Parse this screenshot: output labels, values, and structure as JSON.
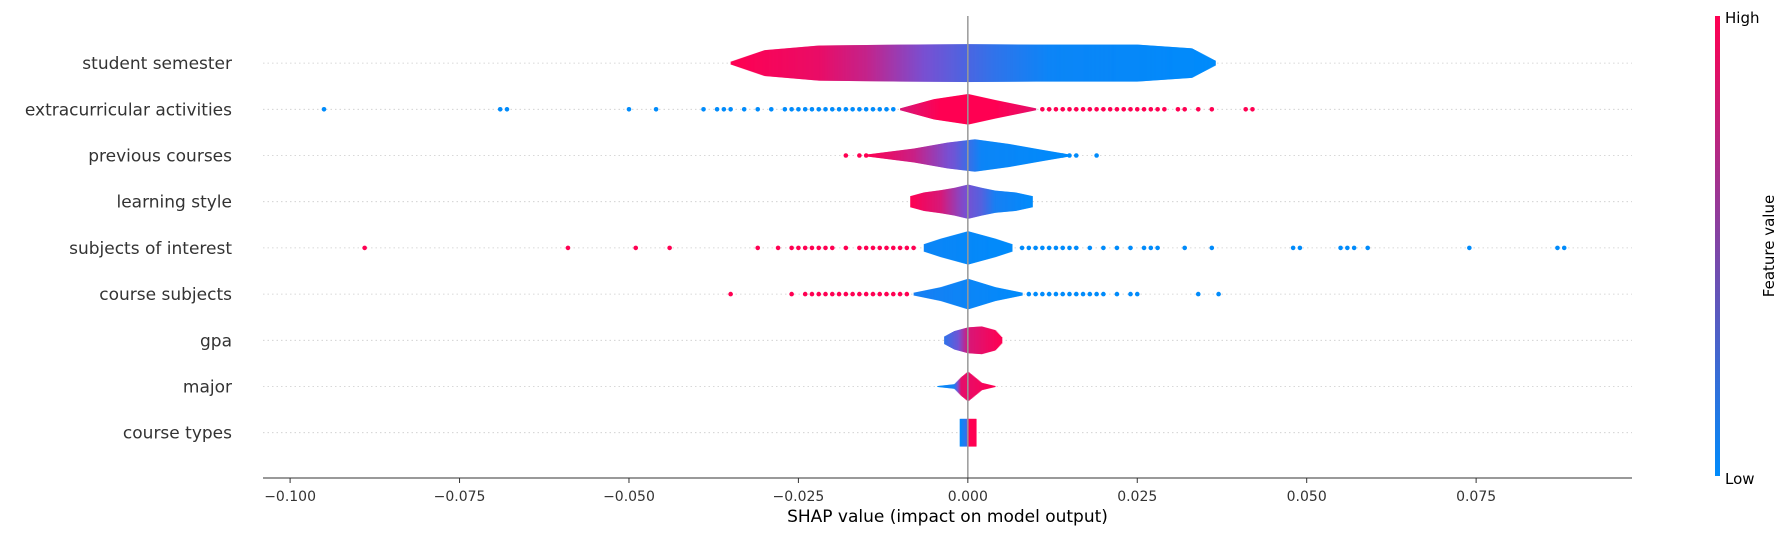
{
  "chart_data": {
    "type": "scatter",
    "subtype": "shap-summary-violin",
    "xlabel": "SHAP value (impact on model output)",
    "xlim": [
      -0.104,
      0.098
    ],
    "x_ticks": [
      -0.1,
      -0.075,
      -0.05,
      -0.025,
      0.0,
      0.025,
      0.05,
      0.075
    ],
    "x_tick_labels": [
      "−0.100",
      "−0.075",
      "−0.050",
      "−0.025",
      "0.000",
      "0.025",
      "0.050",
      "0.075"
    ],
    "colorbar": {
      "label": "Feature value",
      "high_label": "High",
      "low_label": "Low",
      "high_color": "#ff0052",
      "low_color": "#008bfb"
    },
    "features": [
      {
        "name": "student semester",
        "body_range": [
          -0.035,
          0.0365
        ],
        "max_half_width": 0.42,
        "width_profile": [
          [
            -0.035,
            0.03
          ],
          [
            -0.03,
            0.28
          ],
          [
            -0.022,
            0.38
          ],
          [
            -0.01,
            0.4
          ],
          [
            0.0,
            0.41
          ],
          [
            0.01,
            0.4
          ],
          [
            0.025,
            0.4
          ],
          [
            0.033,
            0.32
          ],
          [
            0.0365,
            0.05
          ]
        ],
        "color_profile": [
          [
            -0.035,
            1.0
          ],
          [
            -0.022,
            0.92
          ],
          [
            -0.015,
            0.78
          ],
          [
            -0.008,
            0.55
          ],
          [
            -0.003,
            0.4
          ],
          [
            0.004,
            0.2
          ],
          [
            0.012,
            0.05
          ],
          [
            0.0365,
            0.0
          ]
        ],
        "points": []
      },
      {
        "name": "extracurricular activities",
        "body_range": [
          -0.01,
          0.01
        ],
        "max_half_width": 0.33,
        "width_profile": [
          [
            -0.01,
            0.02
          ],
          [
            -0.005,
            0.22
          ],
          [
            0.0,
            0.33
          ],
          [
            0.004,
            0.2
          ],
          [
            0.01,
            0.02
          ]
        ],
        "color_profile": [
          [
            -0.01,
            0.85
          ],
          [
            -0.004,
            1.0
          ],
          [
            0.004,
            1.0
          ],
          [
            0.01,
            0.9
          ]
        ],
        "points": [
          [
            -0.095,
            0
          ],
          [
            -0.069,
            0
          ],
          [
            -0.068,
            0
          ],
          [
            -0.05,
            0
          ],
          [
            -0.046,
            0
          ],
          [
            -0.039,
            0
          ],
          [
            -0.037,
            0
          ],
          [
            -0.036,
            0
          ],
          [
            -0.035,
            0
          ],
          [
            -0.033,
            0
          ],
          [
            -0.031,
            0
          ],
          [
            -0.029,
            0
          ],
          [
            -0.027,
            0
          ],
          [
            -0.026,
            0
          ],
          [
            -0.025,
            0
          ],
          [
            -0.024,
            0
          ],
          [
            -0.023,
            0
          ],
          [
            -0.022,
            0
          ],
          [
            -0.021,
            0
          ],
          [
            -0.02,
            0
          ],
          [
            -0.019,
            0
          ],
          [
            -0.018,
            0
          ],
          [
            -0.017,
            0
          ],
          [
            -0.016,
            0
          ],
          [
            -0.015,
            0
          ],
          [
            -0.014,
            0
          ],
          [
            -0.013,
            0
          ],
          [
            -0.012,
            0
          ],
          [
            -0.011,
            0
          ],
          [
            0.011,
            1
          ],
          [
            0.012,
            1
          ],
          [
            0.013,
            1
          ],
          [
            0.014,
            1
          ],
          [
            0.015,
            1
          ],
          [
            0.016,
            1
          ],
          [
            0.017,
            1
          ],
          [
            0.018,
            1
          ],
          [
            0.019,
            1
          ],
          [
            0.02,
            1
          ],
          [
            0.021,
            1
          ],
          [
            0.022,
            1
          ],
          [
            0.023,
            1
          ],
          [
            0.024,
            1
          ],
          [
            0.025,
            1
          ],
          [
            0.026,
            1
          ],
          [
            0.027,
            1
          ],
          [
            0.028,
            1
          ],
          [
            0.029,
            1
          ],
          [
            0.031,
            1
          ],
          [
            0.032,
            1
          ],
          [
            0.034,
            1
          ],
          [
            0.036,
            1
          ],
          [
            0.041,
            1
          ],
          [
            0.042,
            1
          ]
        ]
      },
      {
        "name": "previous courses",
        "body_range": [
          -0.015,
          0.015
        ],
        "max_half_width": 0.35,
        "width_profile": [
          [
            -0.015,
            0.02
          ],
          [
            -0.008,
            0.15
          ],
          [
            -0.003,
            0.28
          ],
          [
            0.001,
            0.35
          ],
          [
            0.006,
            0.25
          ],
          [
            0.011,
            0.12
          ],
          [
            0.015,
            0.02
          ]
        ],
        "color_profile": [
          [
            -0.015,
            1.0
          ],
          [
            -0.008,
            0.8
          ],
          [
            -0.002,
            0.45
          ],
          [
            0.002,
            0.05
          ],
          [
            0.015,
            0.0
          ]
        ],
        "points": [
          [
            -0.018,
            1
          ],
          [
            -0.016,
            1
          ],
          [
            -0.015,
            1
          ],
          [
            0.013,
            0
          ],
          [
            0.014,
            0
          ],
          [
            0.015,
            0
          ],
          [
            0.016,
            0
          ],
          [
            0.019,
            0
          ]
        ]
      },
      {
        "name": "learning style",
        "body_range": [
          -0.0085,
          0.0095
        ],
        "max_half_width": 0.37,
        "width_profile": [
          [
            -0.0085,
            0.12
          ],
          [
            -0.0065,
            0.2
          ],
          [
            -0.004,
            0.25
          ],
          [
            -0.002,
            0.3
          ],
          [
            0.0,
            0.37
          ],
          [
            0.002,
            0.3
          ],
          [
            0.004,
            0.24
          ],
          [
            0.007,
            0.2
          ],
          [
            0.0095,
            0.12
          ]
        ],
        "color_profile": [
          [
            -0.0085,
            1.0
          ],
          [
            -0.004,
            0.85
          ],
          [
            -0.001,
            0.55
          ],
          [
            0.002,
            0.35
          ],
          [
            0.004,
            0.1
          ],
          [
            0.0095,
            0.0
          ]
        ],
        "points": []
      },
      {
        "name": "subjects of interest",
        "body_range": [
          -0.0065,
          0.0065
        ],
        "max_half_width": 0.36,
        "width_profile": [
          [
            -0.0065,
            0.08
          ],
          [
            -0.004,
            0.2
          ],
          [
            0.0,
            0.36
          ],
          [
            0.004,
            0.2
          ],
          [
            0.0065,
            0.08
          ]
        ],
        "color_profile": [
          [
            -0.0065,
            0.05
          ],
          [
            0.0065,
            0.0
          ]
        ],
        "points": [
          [
            -0.089,
            1
          ],
          [
            -0.059,
            1
          ],
          [
            -0.049,
            1
          ],
          [
            -0.044,
            1
          ],
          [
            -0.031,
            1
          ],
          [
            -0.028,
            1
          ],
          [
            -0.026,
            1
          ],
          [
            -0.025,
            1
          ],
          [
            -0.024,
            1
          ],
          [
            -0.023,
            1
          ],
          [
            -0.022,
            1
          ],
          [
            -0.021,
            1
          ],
          [
            -0.02,
            1
          ],
          [
            -0.018,
            1
          ],
          [
            -0.016,
            1
          ],
          [
            -0.015,
            1
          ],
          [
            -0.014,
            1
          ],
          [
            -0.013,
            1
          ],
          [
            -0.012,
            1
          ],
          [
            -0.011,
            1
          ],
          [
            -0.01,
            1
          ],
          [
            -0.009,
            1
          ],
          [
            -0.008,
            1
          ],
          [
            0.008,
            0
          ],
          [
            0.009,
            0
          ],
          [
            0.01,
            0
          ],
          [
            0.011,
            0
          ],
          [
            0.012,
            0
          ],
          [
            0.013,
            0
          ],
          [
            0.014,
            0
          ],
          [
            0.015,
            0
          ],
          [
            0.016,
            0
          ],
          [
            0.018,
            0
          ],
          [
            0.02,
            0
          ],
          [
            0.022,
            0
          ],
          [
            0.024,
            0
          ],
          [
            0.026,
            0
          ],
          [
            0.027,
            0
          ],
          [
            0.028,
            0
          ],
          [
            0.032,
            0
          ],
          [
            0.036,
            0
          ],
          [
            0.048,
            0
          ],
          [
            0.049,
            0
          ],
          [
            0.055,
            0
          ],
          [
            0.056,
            0
          ],
          [
            0.057,
            0
          ],
          [
            0.059,
            0
          ],
          [
            0.074,
            0
          ],
          [
            0.087,
            0
          ],
          [
            0.088,
            0
          ]
        ]
      },
      {
        "name": "course subjects",
        "body_range": [
          -0.008,
          0.008
        ],
        "max_half_width": 0.33,
        "width_profile": [
          [
            -0.008,
            0.03
          ],
          [
            -0.004,
            0.15
          ],
          [
            0.0,
            0.33
          ],
          [
            0.004,
            0.15
          ],
          [
            0.008,
            0.03
          ]
        ],
        "color_profile": [
          [
            -0.008,
            0.1
          ],
          [
            0.008,
            0.0
          ]
        ],
        "points": [
          [
            -0.035,
            1
          ],
          [
            -0.026,
            1
          ],
          [
            -0.024,
            1
          ],
          [
            -0.023,
            1
          ],
          [
            -0.022,
            1
          ],
          [
            -0.021,
            1
          ],
          [
            -0.02,
            1
          ],
          [
            -0.019,
            1
          ],
          [
            -0.018,
            1
          ],
          [
            -0.017,
            1
          ],
          [
            -0.016,
            1
          ],
          [
            -0.015,
            1
          ],
          [
            -0.014,
            1
          ],
          [
            -0.013,
            1
          ],
          [
            -0.012,
            1
          ],
          [
            -0.011,
            1
          ],
          [
            -0.01,
            1
          ],
          [
            -0.009,
            1
          ],
          [
            0.009,
            0
          ],
          [
            0.01,
            0
          ],
          [
            0.011,
            0
          ],
          [
            0.012,
            0
          ],
          [
            0.013,
            0
          ],
          [
            0.014,
            0
          ],
          [
            0.015,
            0
          ],
          [
            0.016,
            0
          ],
          [
            0.017,
            0
          ],
          [
            0.018,
            0
          ],
          [
            0.019,
            0
          ],
          [
            0.02,
            0
          ],
          [
            0.022,
            0
          ],
          [
            0.024,
            0
          ],
          [
            0.025,
            0
          ],
          [
            0.034,
            0
          ],
          [
            0.037,
            0
          ]
        ]
      },
      {
        "name": "gpa",
        "body_range": [
          -0.0035,
          0.005
        ],
        "max_half_width": 0.3,
        "width_profile": [
          [
            -0.0035,
            0.08
          ],
          [
            -0.002,
            0.2
          ],
          [
            0.0,
            0.28
          ],
          [
            0.002,
            0.3
          ],
          [
            0.004,
            0.22
          ],
          [
            0.005,
            0.06
          ]
        ],
        "color_profile": [
          [
            -0.0035,
            0.2
          ],
          [
            -0.0015,
            0.45
          ],
          [
            0.0,
            0.85
          ],
          [
            0.005,
            1.0
          ]
        ],
        "points": []
      },
      {
        "name": "major",
        "body_range": [
          -0.0045,
          0.004
        ],
        "max_half_width": 0.32,
        "width_profile": [
          [
            -0.0045,
            0.01
          ],
          [
            -0.002,
            0.05
          ],
          [
            -0.001,
            0.2
          ],
          [
            0.0,
            0.32
          ],
          [
            0.001,
            0.2
          ],
          [
            0.002,
            0.08
          ],
          [
            0.004,
            0.01
          ]
        ],
        "color_profile": [
          [
            -0.0045,
            0.0
          ],
          [
            -0.002,
            0.1
          ],
          [
            -0.001,
            0.9
          ],
          [
            0.004,
            1.0
          ]
        ],
        "points": []
      },
      {
        "name": "course types",
        "body_range": [
          -0.0012,
          0.0012
        ],
        "max_half_width": 0.3,
        "width_profile": [
          [
            -0.0012,
            0.3
          ],
          [
            0.0,
            0.3
          ],
          [
            0.0012,
            0.3
          ]
        ],
        "color_profile": [
          [
            -0.0012,
            0.0
          ],
          [
            -0.0002,
            0.2
          ],
          [
            0.0001,
            1.0
          ],
          [
            0.0012,
            1.0
          ]
        ],
        "points": []
      }
    ]
  }
}
